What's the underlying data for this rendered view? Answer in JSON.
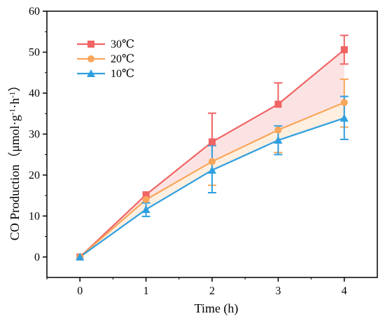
{
  "chart_data": {
    "type": "line",
    "xlabel": "Time (h)",
    "ylabel": "CO Production（μmol·g⁻¹·h⁻¹）",
    "ylabel_main": "CO Production（μmol·g",
    "ylabel_sup1": "-1",
    "ylabel_mid": "·h",
    "ylabel_sup2": "-1",
    "ylabel_end": "）",
    "x": [
      0,
      1,
      2,
      3,
      4
    ],
    "xlim": [
      -0.5,
      4.5
    ],
    "ylim": [
      -5,
      60
    ],
    "xticks": [
      0,
      1,
      2,
      3,
      4
    ],
    "yticks": [
      0,
      10,
      20,
      30,
      40,
      50,
      60
    ],
    "grid": false,
    "legend_position": "top-left",
    "series": [
      {
        "name": "30℃",
        "color": "#f06464",
        "marker": "square",
        "values": [
          0,
          15.2,
          28.1,
          37.3,
          50.6
        ],
        "err_low": [
          0,
          0,
          0,
          0,
          3.5
        ],
        "err_high": [
          0,
          0,
          7.0,
          5.2,
          3.5
        ]
      },
      {
        "name": "20℃",
        "color": "#f8a65a",
        "marker": "circle",
        "values": [
          0,
          14.0,
          23.3,
          31.0,
          37.7
        ],
        "err_low": [
          0,
          0,
          5.8,
          5.5,
          6.0
        ],
        "err_high": [
          0,
          0,
          0,
          0,
          5.7
        ]
      },
      {
        "name": "10℃",
        "color": "#2f9fe0",
        "marker": "triangle",
        "values": [
          0,
          11.6,
          21.2,
          28.5,
          33.9
        ],
        "err_low": [
          0,
          1.7,
          5.5,
          3.5,
          5.2
        ],
        "err_high": [
          0,
          1.6,
          6.0,
          3.5,
          5.3
        ]
      }
    ]
  }
}
